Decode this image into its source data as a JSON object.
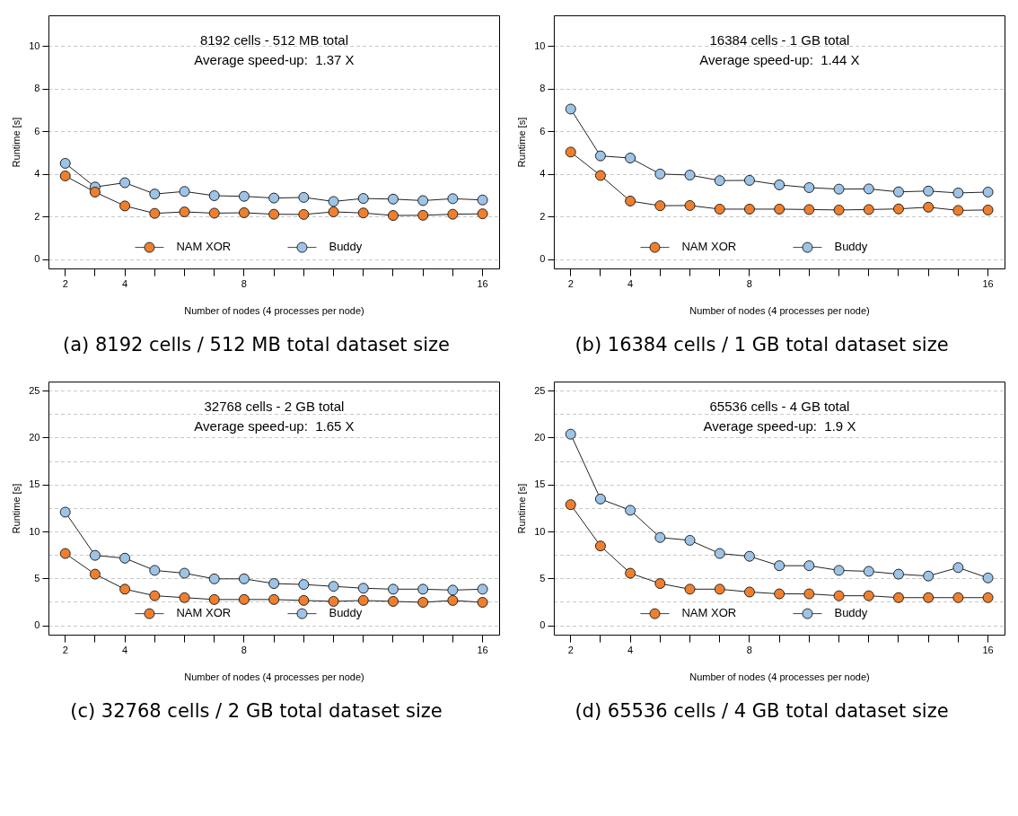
{
  "chart_data": [
    {
      "type": "line",
      "title": "8192 cells - 512 MB total",
      "subtitle": "Average speed-up:  1.37 X",
      "annotations": [
        "(a) 8192 cells / 512 MB total dataset size"
      ],
      "xlabel": "Number of nodes (4 processes per node)",
      "ylabel": "Runtime [s]",
      "x": [
        2,
        3,
        4,
        5,
        6,
        7,
        8,
        9,
        10,
        11,
        12,
        13,
        14,
        15,
        16
      ],
      "series": [
        {
          "name": "NAM XOR",
          "color": "#f07f2d",
          "values": [
            3.93,
            3.17,
            2.52,
            2.17,
            2.24,
            2.18,
            2.2,
            2.13,
            2.12,
            2.24,
            2.19,
            2.07,
            2.08,
            2.13,
            2.15
          ]
        },
        {
          "name": "Buddy",
          "color": "#9dc3e6",
          "values": [
            4.52,
            3.41,
            3.61,
            3.08,
            3.2,
            3.0,
            2.97,
            2.89,
            2.92,
            2.73,
            2.87,
            2.84,
            2.77,
            2.86,
            2.8
          ]
        }
      ],
      "xlim": [
        1.45,
        16.57
      ],
      "xticks": [
        2,
        {
          "value": 3,
          "label": null
        },
        4,
        {
          "value": 5,
          "label": null
        },
        {
          "value": 6,
          "label": null
        },
        {
          "value": 7,
          "label": null
        },
        8,
        {
          "value": 9,
          "label": null
        },
        {
          "value": 10,
          "label": null
        },
        {
          "value": 11,
          "label": null
        },
        {
          "value": 12,
          "label": null
        },
        {
          "value": 13,
          "label": null
        },
        {
          "value": 14,
          "label": null
        },
        {
          "value": 15,
          "label": null
        },
        16
      ],
      "ylim": [
        -0.44,
        11.45
      ],
      "yticks": [
        0,
        2,
        4,
        6,
        8,
        10
      ],
      "grid": "y",
      "legend": "bottom",
      "marker": "circle"
    },
    {
      "type": "line",
      "title": "16384 cells - 1 GB total",
      "subtitle": "Average speed-up:  1.44 X",
      "annotations": [
        "(b) 16384 cells / 1 GB total dataset size"
      ],
      "xlabel": "Number of nodes (4 processes per node)",
      "ylabel": "Runtime [s]",
      "x": [
        2,
        3,
        4,
        5,
        6,
        7,
        8,
        9,
        10,
        11,
        12,
        13,
        14,
        15,
        16
      ],
      "series": [
        {
          "name": "NAM XOR",
          "color": "#f07f2d",
          "values": [
            5.05,
            3.95,
            2.75,
            2.53,
            2.54,
            2.37,
            2.37,
            2.37,
            2.35,
            2.33,
            2.35,
            2.38,
            2.46,
            2.31,
            2.33
          ]
        },
        {
          "name": "Buddy",
          "color": "#9dc3e6",
          "values": [
            7.07,
            4.87,
            4.77,
            4.02,
            3.97,
            3.71,
            3.72,
            3.51,
            3.38,
            3.31,
            3.32,
            3.18,
            3.22,
            3.13,
            3.17
          ]
        }
      ],
      "xlim": [
        1.45,
        16.57
      ],
      "xticks": [
        2,
        {
          "value": 3,
          "label": null
        },
        4,
        {
          "value": 5,
          "label": null
        },
        {
          "value": 6,
          "label": null
        },
        {
          "value": 7,
          "label": null
        },
        8,
        {
          "value": 9,
          "label": null
        },
        {
          "value": 10,
          "label": null
        },
        {
          "value": 11,
          "label": null
        },
        {
          "value": 12,
          "label": null
        },
        {
          "value": 13,
          "label": null
        },
        {
          "value": 14,
          "label": null
        },
        {
          "value": 15,
          "label": null
        },
        16
      ],
      "ylim": [
        -0.44,
        11.45
      ],
      "yticks": [
        0,
        2,
        4,
        6,
        8,
        10
      ],
      "grid": "y",
      "legend": "bottom",
      "marker": "circle"
    },
    {
      "type": "line",
      "title": "32768 cells - 2 GB total",
      "subtitle": "Average speed-up:  1.65 X",
      "annotations": [
        "(c) 32768 cells / 2 GB total dataset size"
      ],
      "xlabel": "Number of nodes (4 processes per node)",
      "ylabel": "Runtime [s]",
      "x": [
        2,
        3,
        4,
        5,
        6,
        7,
        8,
        9,
        10,
        11,
        12,
        13,
        14,
        15,
        16
      ],
      "series": [
        {
          "name": "NAM XOR",
          "color": "#f07f2d",
          "values": [
            7.7,
            5.5,
            3.9,
            3.2,
            3.0,
            2.8,
            2.8,
            2.8,
            2.7,
            2.6,
            2.7,
            2.6,
            2.5,
            2.7,
            2.5
          ]
        },
        {
          "name": "Buddy",
          "color": "#9dc3e6",
          "values": [
            12.1,
            7.5,
            7.2,
            5.9,
            5.6,
            5.0,
            5.0,
            4.5,
            4.4,
            4.2,
            4.0,
            3.9,
            3.9,
            3.8,
            3.9
          ]
        }
      ],
      "xlim": [
        1.45,
        16.57
      ],
      "xticks": [
        2,
        {
          "value": 3,
          "label": null
        },
        4,
        {
          "value": 5,
          "label": null
        },
        {
          "value": 6,
          "label": null
        },
        {
          "value": 7,
          "label": null
        },
        8,
        {
          "value": 9,
          "label": null
        },
        {
          "value": 10,
          "label": null
        },
        {
          "value": 11,
          "label": null
        },
        {
          "value": 12,
          "label": null
        },
        {
          "value": 13,
          "label": null
        },
        {
          "value": 14,
          "label": null
        },
        {
          "value": 15,
          "label": null
        },
        16
      ],
      "ylim": [
        -1,
        25.95
      ],
      "yticks": [
        0,
        {
          "value": 2.5,
          "label": null
        },
        5,
        {
          "value": 7.5,
          "label": null
        },
        10,
        {
          "value": 12.5,
          "label": null
        },
        15,
        {
          "value": 17.5,
          "label": null
        },
        20,
        {
          "value": 22.5,
          "label": null
        },
        25
      ],
      "grid": "y",
      "legend": "bottom",
      "marker": "circle"
    },
    {
      "type": "line",
      "title": "65536 cells - 4 GB total",
      "subtitle": "Average speed-up:  1.9 X",
      "annotations": [
        "(d) 65536 cells / 4 GB total dataset size"
      ],
      "xlabel": "Number of nodes (4 processes per node)",
      "ylabel": "Runtime [s]",
      "x": [
        2,
        3,
        4,
        5,
        6,
        7,
        8,
        9,
        10,
        11,
        12,
        13,
        14,
        15,
        16
      ],
      "series": [
        {
          "name": "NAM XOR",
          "color": "#f07f2d",
          "values": [
            12.9,
            8.5,
            5.6,
            4.5,
            3.9,
            3.9,
            3.6,
            3.4,
            3.4,
            3.2,
            3.2,
            3.0,
            3.0,
            3.0,
            3.0
          ]
        },
        {
          "name": "Buddy",
          "color": "#9dc3e6",
          "values": [
            20.4,
            13.5,
            12.3,
            9.4,
            9.1,
            7.7,
            7.4,
            6.4,
            6.4,
            5.9,
            5.8,
            5.5,
            5.3,
            6.2,
            5.1
          ]
        }
      ],
      "xlim": [
        1.45,
        16.57
      ],
      "xticks": [
        2,
        {
          "value": 3,
          "label": null
        },
        4,
        {
          "value": 5,
          "label": null
        },
        {
          "value": 6,
          "label": null
        },
        {
          "value": 7,
          "label": null
        },
        8,
        {
          "value": 9,
          "label": null
        },
        {
          "value": 10,
          "label": null
        },
        {
          "value": 11,
          "label": null
        },
        {
          "value": 12,
          "label": null
        },
        {
          "value": 13,
          "label": null
        },
        {
          "value": 14,
          "label": null
        },
        {
          "value": 15,
          "label": null
        },
        16
      ],
      "ylim": [
        -1,
        25.95
      ],
      "yticks": [
        0,
        {
          "value": 2.5,
          "label": null
        },
        5,
        {
          "value": 7.5,
          "label": null
        },
        10,
        {
          "value": 12.5,
          "label": null
        },
        15,
        {
          "value": 17.5,
          "label": null
        },
        20,
        {
          "value": 22.5,
          "label": null
        },
        25
      ],
      "grid": "y",
      "legend": "bottom",
      "marker": "circle"
    }
  ]
}
